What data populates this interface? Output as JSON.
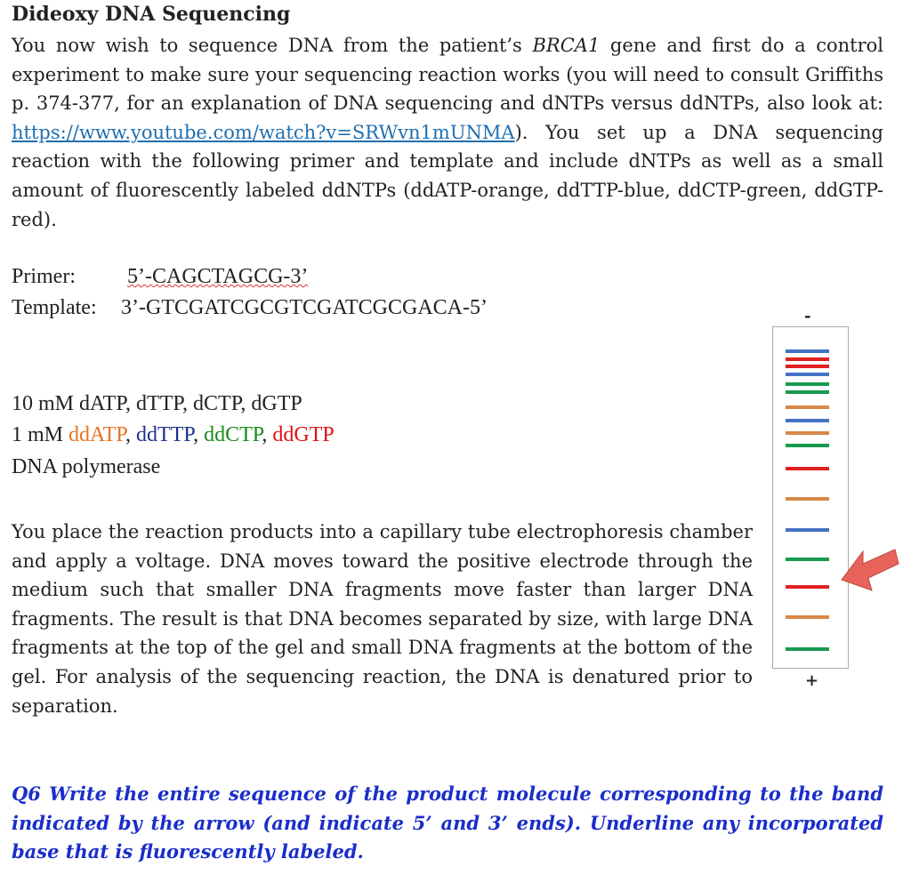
{
  "title": "Dideoxy DNA Sequencing",
  "intro": {
    "before_gene": "You now wish to sequence DNA from the patient’s ",
    "gene": "BRCA1",
    "after_gene": " gene and first do a control experiment to make sure your sequencing reaction works (you will need to consult Griffiths p. 374-377, for an explanation of DNA sequencing and dNTPs versus ddNTPs, also look at: ",
    "link": "https://www.youtube.com/watch?v=SRWvn1mUNMA",
    "after_link": "). You set up a DNA sequencing reaction with the following primer and template and include dNTPs as well as a small amount of fluorescently labeled ddNTPs (ddATP-orange, ddTTP-blue, ddCTP-green, ddGTP-red)."
  },
  "primer": {
    "label": "Primer:",
    "sequence": "5’-CAGCTAGCG-3’"
  },
  "template": {
    "label": "Template:",
    "sequence": "3’-GTCGATCGCGTCGATCGCGACA-5’"
  },
  "reagents": {
    "line1": "10 mM dATP, dTTP, dCTP, dGTP",
    "line2_prefix": "1 mM ",
    "separator": ", ",
    "ddntps": [
      {
        "text": "ddATP",
        "color": "#e8731e"
      },
      {
        "text": "ddTTP",
        "color": "#1f2f8f"
      },
      {
        "text": "ddCTP",
        "color": "#1a8a1a"
      },
      {
        "text": "ddGTP",
        "color": "#e01010"
      }
    ],
    "line3": "DNA polymerase"
  },
  "electrophoresis": "You place the reaction products into a capillary tube electrophoresis chamber and apply a voltage. DNA moves toward the positive electrode through the medium such that smaller DNA fragments move faster than larger DNA fragments. The result is that DNA becomes separated by size, with large DNA fragments at the top of the gel and small DNA fragments at the bottom of the gel. For analysis of the sequencing reaction, the DNA is denatured prior to separation.",
  "gel": {
    "top_label": "-",
    "bottom_label": "+"
  },
  "question": "Q6 Write the entire sequence of the product molecule corresponding to the band indicated by the arrow (and indicate 5’ and 3’ ends). Underline any incorporated base that is fluorescently labeled."
}
